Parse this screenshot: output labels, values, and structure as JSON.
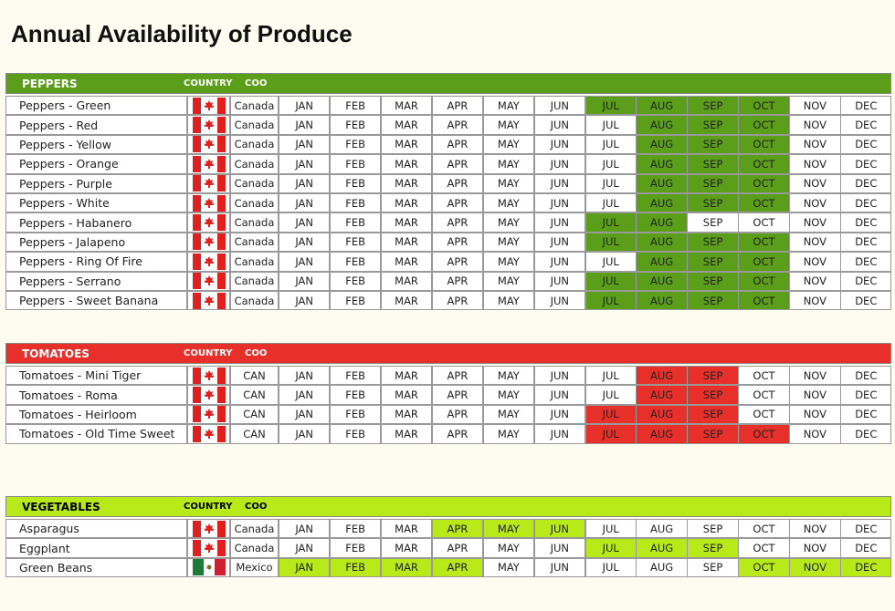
{
  "title": "Annual Availability of Produce",
  "months": [
    "JAN",
    "FEB",
    "MAR",
    "APR",
    "MAY",
    "JUN",
    "JUL",
    "AUG",
    "SEP",
    "OCT",
    "NOV",
    "DEC"
  ],
  "sections": [
    {
      "title": "PEPPERS",
      "country_header": "COUNTRY",
      "coo_header": "COO",
      "color": "#5a9e1a",
      "header_text_color": "#ffffff",
      "rows": [
        {
          "name": "Peppers - Green",
          "flag": "canada",
          "coo": "Canada",
          "available": [
            false,
            false,
            false,
            false,
            false,
            false,
            true,
            true,
            true,
            true,
            false,
            false
          ]
        },
        {
          "name": "Peppers - Red",
          "flag": "canada",
          "coo": "Canada",
          "available": [
            false,
            false,
            false,
            false,
            false,
            false,
            false,
            true,
            true,
            true,
            false,
            false
          ]
        },
        {
          "name": "Peppers - Yellow",
          "flag": "canada",
          "coo": "Canada",
          "available": [
            false,
            false,
            false,
            false,
            false,
            false,
            false,
            true,
            true,
            true,
            false,
            false
          ]
        },
        {
          "name": "Peppers - Orange",
          "flag": "canada",
          "coo": "Canada",
          "available": [
            false,
            false,
            false,
            false,
            false,
            false,
            false,
            true,
            true,
            true,
            false,
            false
          ]
        },
        {
          "name": "Peppers - Purple",
          "flag": "canada",
          "coo": "Canada",
          "available": [
            false,
            false,
            false,
            false,
            false,
            false,
            false,
            true,
            true,
            true,
            false,
            false
          ]
        },
        {
          "name": "Peppers - White",
          "flag": "canada",
          "coo": "Canada",
          "available": [
            false,
            false,
            false,
            false,
            false,
            false,
            false,
            true,
            true,
            true,
            false,
            false
          ]
        },
        {
          "name": "Peppers - Habanero",
          "flag": "canada",
          "coo": "Canada",
          "available": [
            false,
            false,
            false,
            false,
            false,
            false,
            true,
            true,
            false,
            false,
            false,
            false
          ]
        },
        {
          "name": "Peppers - Jalapeno",
          "flag": "canada",
          "coo": "Canada",
          "available": [
            false,
            false,
            false,
            false,
            false,
            false,
            true,
            true,
            true,
            true,
            false,
            false
          ]
        },
        {
          "name": "Peppers - Ring Of Fire",
          "flag": "canada",
          "coo": "Canada",
          "available": [
            false,
            false,
            false,
            false,
            false,
            false,
            false,
            true,
            true,
            true,
            false,
            false
          ]
        },
        {
          "name": "Peppers - Serrano",
          "flag": "canada",
          "coo": "Canada",
          "available": [
            false,
            false,
            false,
            false,
            false,
            false,
            true,
            true,
            true,
            true,
            false,
            false
          ]
        },
        {
          "name": "Peppers - Sweet Banana",
          "flag": "canada",
          "coo": "Canada",
          "available": [
            false,
            false,
            false,
            false,
            false,
            false,
            true,
            true,
            true,
            true,
            false,
            false
          ]
        }
      ]
    },
    {
      "title": "TOMATOES",
      "country_header": "COUNTRY",
      "coo_header": "COO",
      "color": "#e8302a",
      "header_text_color": "#ffffff",
      "rows": [
        {
          "name": "Tomatoes - Mini Tiger",
          "flag": "canada",
          "coo": "CAN",
          "available": [
            false,
            false,
            false,
            false,
            false,
            false,
            false,
            true,
            true,
            false,
            false,
            false
          ]
        },
        {
          "name": "Tomatoes - Roma",
          "flag": "canada",
          "coo": "CAN",
          "available": [
            false,
            false,
            false,
            false,
            false,
            false,
            false,
            true,
            true,
            false,
            false,
            false
          ]
        },
        {
          "name": "Tomatoes - Heirloom",
          "flag": "canada",
          "coo": "CAN",
          "available": [
            false,
            false,
            false,
            false,
            false,
            false,
            true,
            true,
            true,
            false,
            false,
            false
          ]
        },
        {
          "name": "Tomatoes - Old Time Sweet",
          "flag": "canada",
          "coo": "CAN",
          "available": [
            false,
            false,
            false,
            false,
            false,
            false,
            true,
            true,
            true,
            true,
            false,
            false
          ]
        }
      ]
    },
    {
      "title": "VEGETABLES",
      "country_header": "COUNTRY",
      "coo_header": "COO",
      "color": "#b8ea1a",
      "header_text_color": "#000000",
      "rows": [
        {
          "name": "Asparagus",
          "flag": "canada",
          "coo": "Canada",
          "available": [
            false,
            false,
            false,
            true,
            true,
            true,
            false,
            false,
            false,
            false,
            false,
            false
          ]
        },
        {
          "name": "Eggplant",
          "flag": "canada",
          "coo": "Canada",
          "available": [
            false,
            false,
            false,
            false,
            false,
            false,
            true,
            true,
            true,
            false,
            false,
            false
          ]
        },
        {
          "name": "Green Beans",
          "flag": "mexico",
          "coo": "Mexico",
          "available": [
            true,
            true,
            true,
            true,
            false,
            false,
            false,
            false,
            false,
            true,
            true,
            true
          ]
        }
      ]
    }
  ]
}
